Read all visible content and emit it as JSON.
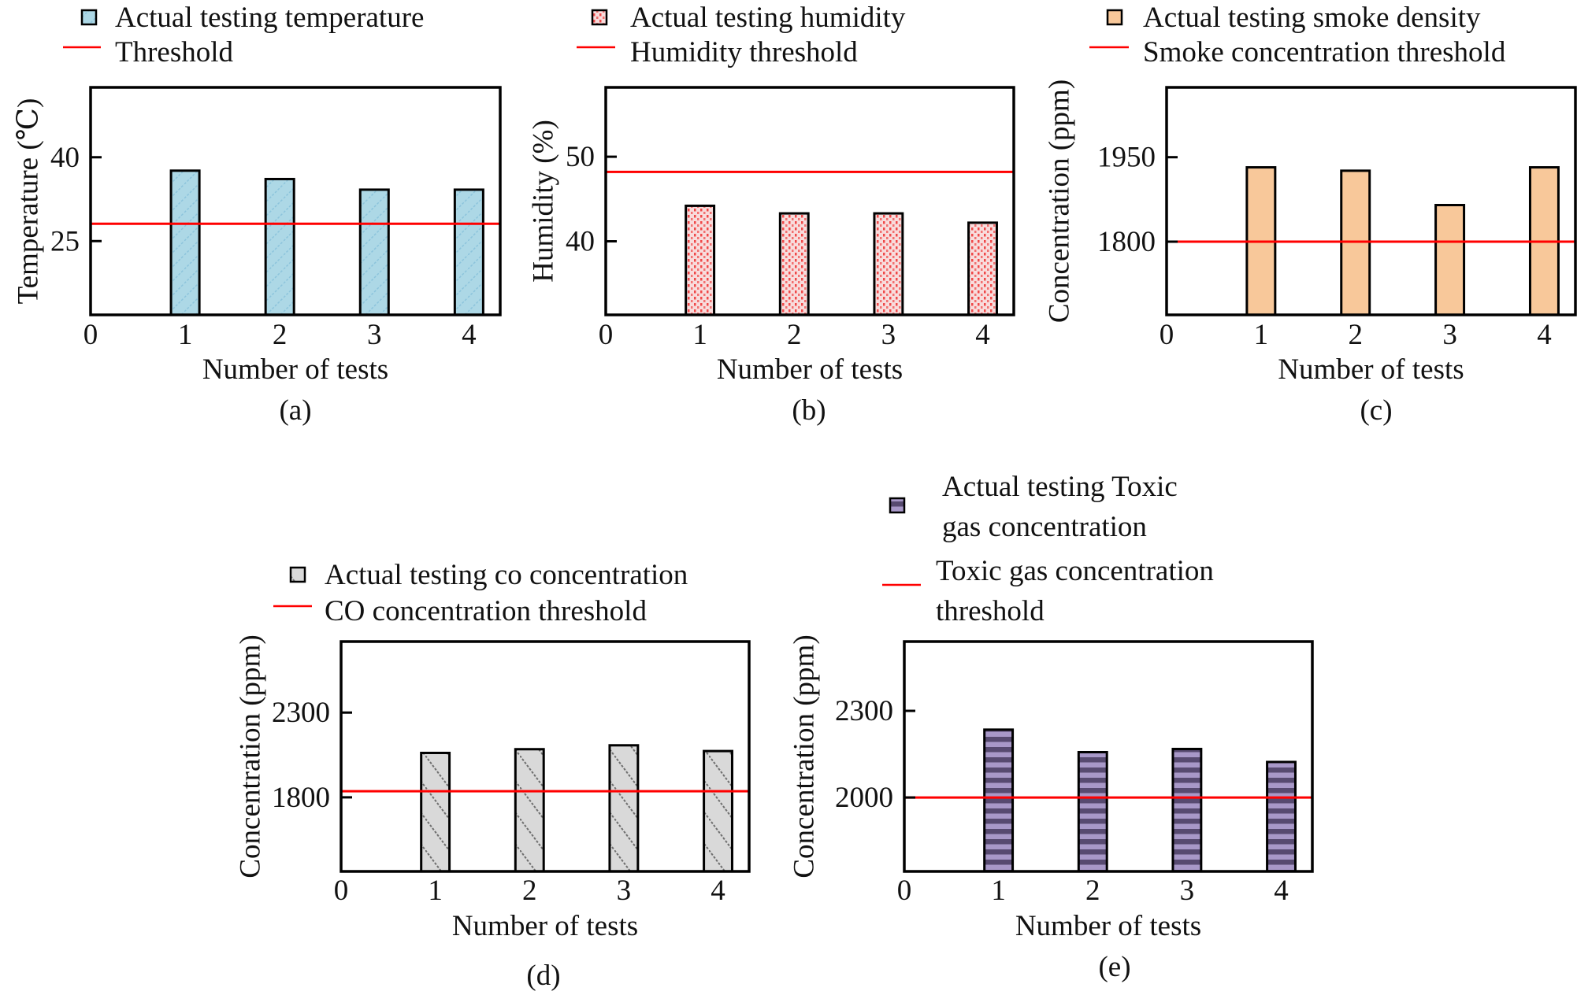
{
  "chart_data": [
    {
      "type": "bar",
      "caption": "(a)",
      "xlabel": "Number of tests",
      "ylabel": "Temperature (℃)",
      "categories": [
        1,
        2,
        3,
        4
      ],
      "x_ticks": [
        "0",
        "1",
        "2",
        "3",
        "4"
      ],
      "y_ticks": [
        25,
        40
      ],
      "ylim": [
        11.8,
        52.5
      ],
      "xlim": [
        0,
        4.33
      ],
      "series": [
        {
          "name": "Actual testing temperature",
          "values": [
            37.6,
            36.1,
            34.2,
            34.2
          ],
          "color": "#add8e6",
          "pattern": "diagonal-hatch"
        }
      ],
      "threshold": {
        "name": "Threshold",
        "value": 28.1,
        "color": "#ff0000"
      },
      "legend": "top-left",
      "grid": false
    },
    {
      "type": "bar",
      "caption": "(b)",
      "xlabel": "Number of tests",
      "ylabel": "Humidity (%)",
      "categories": [
        1,
        2,
        3,
        4
      ],
      "x_ticks": [
        "0",
        "1",
        "2",
        "3",
        "4"
      ],
      "y_ticks": [
        40,
        50
      ],
      "ylim": [
        31.3,
        58.2
      ],
      "xlim": [
        0,
        4.33
      ],
      "series": [
        {
          "name": "Actual testing humidity",
          "values": [
            44.2,
            43.3,
            43.3,
            42.2
          ],
          "color": "#f8d8d8",
          "pattern": "red-dots"
        }
      ],
      "threshold": {
        "name": "Humidity threshold",
        "value": 48.2,
        "color": "#ff0000"
      },
      "legend": "top-left",
      "grid": false
    },
    {
      "type": "bar",
      "caption": "(c)",
      "xlabel": "Number of tests",
      "ylabel": "Concentration (ppm)",
      "categories": [
        1,
        2,
        3,
        4
      ],
      "x_ticks": [
        "0",
        "1",
        "2",
        "3",
        "4"
      ],
      "y_ticks": [
        1800,
        1950
      ],
      "ylim": [
        1670,
        2074
      ],
      "xlim": [
        0,
        4.33
      ],
      "series": [
        {
          "name": "Actual testing smoke density",
          "values": [
            1932,
            1926,
            1865,
            1932
          ],
          "color": "#f8c89a",
          "pattern": "solid"
        }
      ],
      "threshold": {
        "name": "Smoke concentration threshold",
        "value": 1800,
        "color": "#ff0000"
      },
      "legend": "top-left",
      "grid": false
    },
    {
      "type": "bar",
      "caption": "(d)",
      "xlabel": "Number of tests",
      "ylabel": "Concentration (ppm)",
      "categories": [
        1,
        2,
        3,
        4
      ],
      "x_ticks": [
        "0",
        "1",
        "2",
        "3",
        "4"
      ],
      "y_ticks": [
        1800,
        2300
      ],
      "ylim": [
        1363,
        2719
      ],
      "xlim": [
        0,
        4.33
      ],
      "series": [
        {
          "name": "Actual testing co concentration",
          "values": [
            2062,
            2084,
            2107,
            2073
          ],
          "color": "#d9d9d9",
          "pattern": "dotted-back-diagonal"
        }
      ],
      "threshold": {
        "name": "CO concentration threshold",
        "value": 1836,
        "color": "#ff0000"
      },
      "legend": "top-left",
      "grid": false
    },
    {
      "type": "bar",
      "caption": "(e)",
      "xlabel": "Number of tests",
      "ylabel": "Concentration (ppm)",
      "categories": [
        1,
        2,
        3,
        4
      ],
      "x_ticks": [
        "0",
        "1",
        "2",
        "3",
        "4"
      ],
      "y_ticks": [
        2000,
        2300
      ],
      "ylim": [
        1744,
        2540
      ],
      "xlim": [
        0,
        4.33
      ],
      "series": [
        {
          "name": "Actual testing Toxic gas concentration",
          "name_lines": [
            "Actual testing Toxic",
            "gas concentration"
          ],
          "values": [
            2235,
            2157,
            2168,
            2123
          ],
          "color": "#a898c8",
          "pattern": "horizontal-stripes"
        }
      ],
      "threshold": {
        "name": "Toxic gas concentration threshold",
        "name_lines": [
          "Toxic gas concentration",
          "threshold"
        ],
        "value": 2000,
        "color": "#ff0000"
      },
      "legend": "top-left",
      "grid": false
    }
  ]
}
